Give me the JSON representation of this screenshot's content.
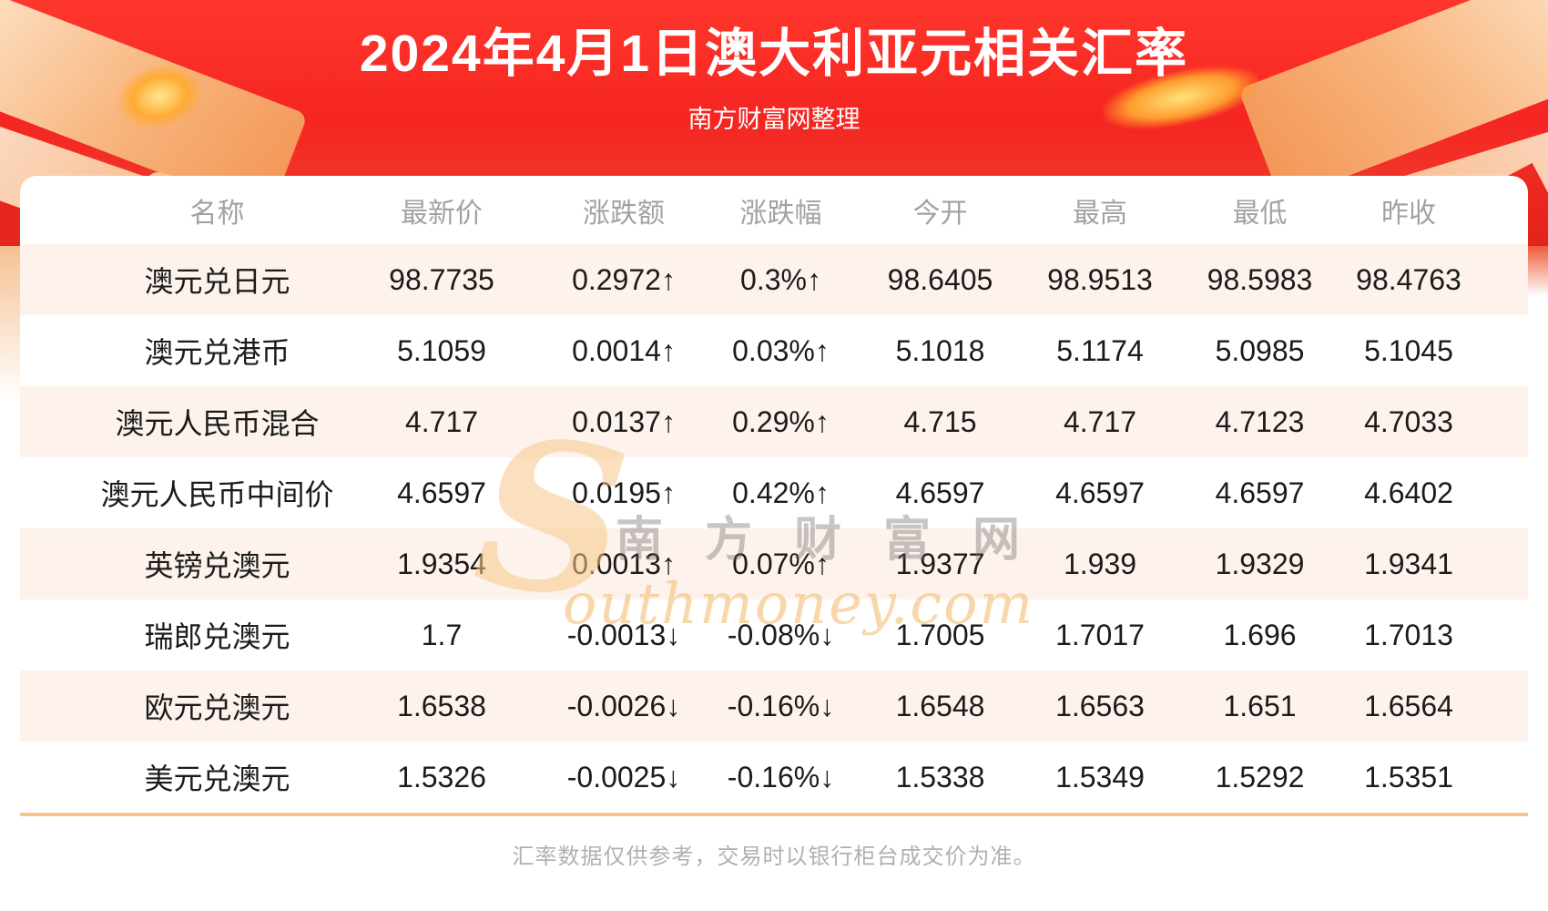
{
  "banner": {
    "title": "2024年4月1日澳大利亚元相关汇率",
    "subtitle": "南方财富网整理"
  },
  "table": {
    "columns": [
      "名称",
      "最新价",
      "涨跌额",
      "涨跌幅",
      "今开",
      "最高",
      "最低",
      "昨收"
    ],
    "rows": [
      {
        "name": "澳元兑日元",
        "latest": "98.7735",
        "change": "0.2972↑",
        "change_pct": "0.3%↑",
        "open": "98.6405",
        "high": "98.9513",
        "low": "98.5983",
        "prev_close": "98.4763",
        "trend": "up"
      },
      {
        "name": "澳元兑港币",
        "latest": "5.1059",
        "change": "0.0014↑",
        "change_pct": "0.03%↑",
        "open": "5.1018",
        "high": "5.1174",
        "low": "5.0985",
        "prev_close": "5.1045",
        "trend": "up"
      },
      {
        "name": "澳元人民币混合",
        "latest": "4.717",
        "change": "0.0137↑",
        "change_pct": "0.29%↑",
        "open": "4.715",
        "high": "4.717",
        "low": "4.7123",
        "prev_close": "4.7033",
        "trend": "up"
      },
      {
        "name": "澳元人民币中间价",
        "latest": "4.6597",
        "change": "0.0195↑",
        "change_pct": "0.42%↑",
        "open": "4.6597",
        "high": "4.6597",
        "low": "4.6597",
        "prev_close": "4.6402",
        "trend": "up"
      },
      {
        "name": "英镑兑澳元",
        "latest": "1.9354",
        "change": "0.0013↑",
        "change_pct": "0.07%↑",
        "open": "1.9377",
        "high": "1.939",
        "low": "1.9329",
        "prev_close": "1.9341",
        "trend": "up"
      },
      {
        "name": "瑞郎兑澳元",
        "latest": "1.7",
        "change": "-0.0013↓",
        "change_pct": "-0.08%↓",
        "open": "1.7005",
        "high": "1.7017",
        "low": "1.696",
        "prev_close": "1.7013",
        "trend": "down"
      },
      {
        "name": "欧元兑澳元",
        "latest": "1.6538",
        "change": "-0.0026↓",
        "change_pct": "-0.16%↓",
        "open": "1.6548",
        "high": "1.6563",
        "low": "1.651",
        "prev_close": "1.6564",
        "trend": "down"
      },
      {
        "name": "美元兑澳元",
        "latest": "1.5326",
        "change": "-0.0025↓",
        "change_pct": "-0.16%↓",
        "open": "1.5338",
        "high": "1.5349",
        "low": "1.5292",
        "prev_close": "1.5351",
        "trend": "down"
      }
    ]
  },
  "watermark": {
    "s": "S",
    "cn": "南方财富网",
    "en": "outhmoney.com"
  },
  "footer": {
    "disclaimer": "汇率数据仅供参考，交易时以银行柜台成交价为准。"
  },
  "colors": {
    "up_red": "#ee1c1c",
    "down_green": "#0f9c17",
    "banner_red": "#f52521",
    "row_alt": "#fdf3ec",
    "separator": "#f5c58e"
  },
  "chart_data": {
    "type": "table",
    "title": "2024年4月1日澳大利亚元相关汇率",
    "columns": [
      "名称",
      "最新价",
      "涨跌额",
      "涨跌幅",
      "今开",
      "最高",
      "最低",
      "昨收"
    ],
    "rows": [
      [
        "澳元兑日元",
        "98.7735",
        "0.2972↑",
        "0.3%↑",
        "98.6405",
        "98.9513",
        "98.5983",
        "98.4763"
      ],
      [
        "澳元兑港币",
        "5.1059",
        "0.0014↑",
        "0.03%↑",
        "5.1018",
        "5.1174",
        "5.0985",
        "5.1045"
      ],
      [
        "澳元人民币混合",
        "4.717",
        "0.0137↑",
        "0.29%↑",
        "4.715",
        "4.717",
        "4.7123",
        "4.7033"
      ],
      [
        "澳元人民币中间价",
        "4.6597",
        "0.0195↑",
        "0.42%↑",
        "4.6597",
        "4.6597",
        "4.6597",
        "4.6402"
      ],
      [
        "英镑兑澳元",
        "1.9354",
        "0.0013↑",
        "0.07%↑",
        "1.9377",
        "1.939",
        "1.9329",
        "1.9341"
      ],
      [
        "瑞郎兑澳元",
        "1.7",
        "-0.0013↓",
        "-0.08%↓",
        "1.7005",
        "1.7017",
        "1.696",
        "1.7013"
      ],
      [
        "欧元兑澳元",
        "1.6538",
        "-0.0026↓",
        "-0.16%↓",
        "1.6548",
        "1.6563",
        "1.651",
        "1.6564"
      ],
      [
        "美元兑澳元",
        "1.5326",
        "-0.0025↓",
        "-0.16%↓",
        "1.5338",
        "1.5349",
        "1.5292",
        "1.5351"
      ]
    ]
  }
}
